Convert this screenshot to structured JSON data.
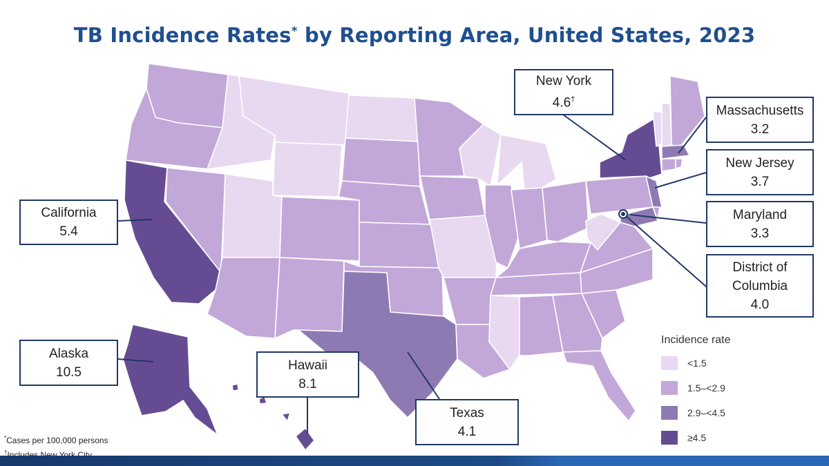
{
  "title": "TB Incidence Rates",
  "title_sup": "*",
  "title_rest": " by Reporting Area, United States, 2023",
  "colors": {
    "lt_1_5": "#e8d8f0",
    "1_5_to_2_9": "#c2a7d9",
    "2_9_to_4_5": "#8e7ab3",
    "ge_4_5": "#654c92",
    "leader": "#1f3864",
    "title": "#1f4f8f"
  },
  "callouts": {
    "new_york": {
      "name": "New York",
      "value": "4.6",
      "sup": "†"
    },
    "massachusetts": {
      "name": "Massachusetts",
      "value": "3.2"
    },
    "new_jersey": {
      "name": "New Jersey",
      "value": "3.7"
    },
    "maryland": {
      "name": "Maryland",
      "value": "3.3"
    },
    "dc": {
      "name": "District of Columbia",
      "value": "4.0"
    },
    "california": {
      "name": "California",
      "value": "5.4"
    },
    "alaska": {
      "name": "Alaska",
      "value": "10.5"
    },
    "hawaii": {
      "name": "Hawaii",
      "value": "8.1"
    },
    "texas": {
      "name": "Texas",
      "value": "4.1"
    }
  },
  "legend": {
    "title": "Incidence rate",
    "items": [
      {
        "label": "<1.5",
        "color": "#e8d8f0"
      },
      {
        "label": "1.5–<2.9",
        "color": "#c2a7d9"
      },
      {
        "label": "2.9–<4.5",
        "color": "#8e7ab3"
      },
      {
        "label": "≥4.5",
        "color": "#654c92"
      }
    ]
  },
  "footnotes": {
    "note1_mark": "*",
    "note1": "Cases per 100,000 persons",
    "note2_mark": "†",
    "note2": "Includes New York City"
  }
}
